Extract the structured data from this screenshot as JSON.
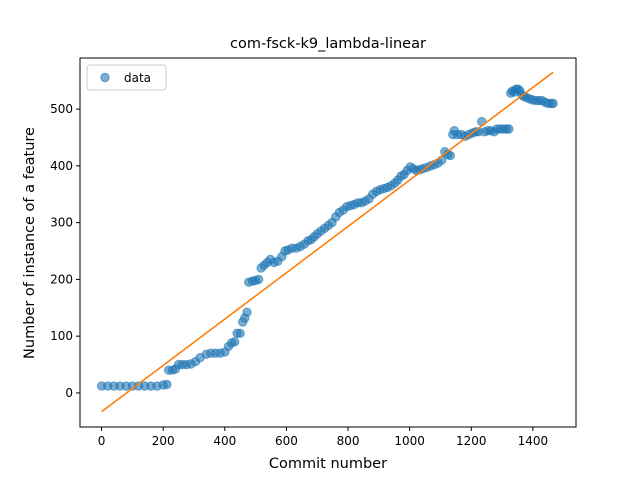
{
  "chart_data": {
    "type": "scatter",
    "title": "com-fsck-k9_lambda-linear",
    "xlabel": "Commit number",
    "ylabel": "Number of instance of a feature",
    "xlim": [
      -70,
      1540
    ],
    "ylim": [
      -60,
      590
    ],
    "xticks": [
      0,
      200,
      400,
      600,
      800,
      1000,
      1200,
      1400
    ],
    "yticks": [
      0,
      100,
      200,
      300,
      400,
      500
    ],
    "grid": false,
    "legend": {
      "position": "top-left",
      "entries": [
        "data"
      ]
    },
    "colors": {
      "data": "#1f77b4",
      "fit": "#ff7f0e"
    },
    "series": [
      {
        "name": "data",
        "kind": "scatter",
        "points": [
          [
            0,
            12
          ],
          [
            20,
            12
          ],
          [
            40,
            12
          ],
          [
            60,
            12
          ],
          [
            80,
            12
          ],
          [
            100,
            12
          ],
          [
            120,
            12
          ],
          [
            140,
            12
          ],
          [
            160,
            12
          ],
          [
            180,
            12
          ],
          [
            200,
            14
          ],
          [
            212,
            15
          ],
          [
            218,
            40
          ],
          [
            230,
            40
          ],
          [
            240,
            42
          ],
          [
            250,
            50
          ],
          [
            262,
            50
          ],
          [
            275,
            50
          ],
          [
            290,
            51
          ],
          [
            305,
            55
          ],
          [
            320,
            62
          ],
          [
            340,
            68
          ],
          [
            355,
            70
          ],
          [
            370,
            70
          ],
          [
            385,
            70
          ],
          [
            400,
            72
          ],
          [
            412,
            82
          ],
          [
            422,
            88
          ],
          [
            432,
            90
          ],
          [
            440,
            105
          ],
          [
            450,
            105
          ],
          [
            458,
            125
          ],
          [
            465,
            132
          ],
          [
            472,
            142
          ],
          [
            478,
            195
          ],
          [
            490,
            197
          ],
          [
            500,
            198
          ],
          [
            510,
            200
          ],
          [
            518,
            220
          ],
          [
            528,
            225
          ],
          [
            538,
            230
          ],
          [
            548,
            235
          ],
          [
            560,
            230
          ],
          [
            572,
            232
          ],
          [
            585,
            240
          ],
          [
            595,
            250
          ],
          [
            605,
            252
          ],
          [
            618,
            255
          ],
          [
            632,
            255
          ],
          [
            645,
            258
          ],
          [
            658,
            262
          ],
          [
            670,
            268
          ],
          [
            680,
            270
          ],
          [
            690,
            275
          ],
          [
            700,
            280
          ],
          [
            712,
            285
          ],
          [
            724,
            290
          ],
          [
            736,
            295
          ],
          [
            748,
            300
          ],
          [
            760,
            310
          ],
          [
            772,
            318
          ],
          [
            784,
            322
          ],
          [
            796,
            328
          ],
          [
            808,
            330
          ],
          [
            820,
            332
          ],
          [
            832,
            335
          ],
          [
            844,
            335
          ],
          [
            856,
            338
          ],
          [
            868,
            342
          ],
          [
            880,
            350
          ],
          [
            892,
            355
          ],
          [
            904,
            358
          ],
          [
            916,
            360
          ],
          [
            928,
            362
          ],
          [
            940,
            365
          ],
          [
            952,
            370
          ],
          [
            962,
            375
          ],
          [
            972,
            382
          ],
          [
            982,
            385
          ],
          [
            992,
            392
          ],
          [
            1002,
            398
          ],
          [
            1012,
            395
          ],
          [
            1022,
            392
          ],
          [
            1032,
            393
          ],
          [
            1042,
            395
          ],
          [
            1055,
            397
          ],
          [
            1068,
            400
          ],
          [
            1080,
            402
          ],
          [
            1092,
            405
          ],
          [
            1104,
            410
          ],
          [
            1114,
            425
          ],
          [
            1124,
            420
          ],
          [
            1132,
            418
          ],
          [
            1140,
            455
          ],
          [
            1145,
            462
          ],
          [
            1155,
            455
          ],
          [
            1168,
            455
          ],
          [
            1180,
            452
          ],
          [
            1192,
            455
          ],
          [
            1204,
            458
          ],
          [
            1214,
            460
          ],
          [
            1224,
            460
          ],
          [
            1234,
            478
          ],
          [
            1244,
            460
          ],
          [
            1254,
            462
          ],
          [
            1264,
            462
          ],
          [
            1274,
            460
          ],
          [
            1284,
            465
          ],
          [
            1294,
            465
          ],
          [
            1304,
            465
          ],
          [
            1314,
            465
          ],
          [
            1322,
            465
          ],
          [
            1328,
            528
          ],
          [
            1334,
            532
          ],
          [
            1340,
            530
          ],
          [
            1346,
            535
          ],
          [
            1352,
            535
          ],
          [
            1358,
            532
          ],
          [
            1364,
            525
          ],
          [
            1372,
            522
          ],
          [
            1380,
            520
          ],
          [
            1390,
            518
          ],
          [
            1400,
            516
          ],
          [
            1410,
            515
          ],
          [
            1420,
            515
          ],
          [
            1430,
            515
          ],
          [
            1440,
            512
          ],
          [
            1450,
            510
          ],
          [
            1460,
            510
          ],
          [
            1466,
            510
          ]
        ]
      },
      {
        "name": "",
        "kind": "line",
        "points": [
          [
            0,
            -33
          ],
          [
            1466,
            565
          ]
        ]
      }
    ]
  }
}
